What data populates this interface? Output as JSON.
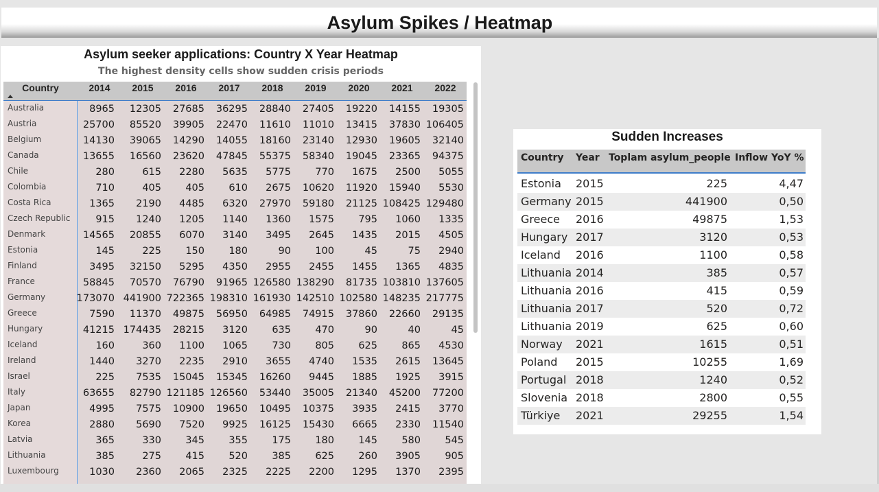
{
  "page_title": "Asylum Spikes / Heatmap",
  "heatmap": {
    "title": "Asylum seeker applications: Country X Year Heatmap",
    "subtitle": "The highest density cells show sudden crisis periods",
    "country_header": "Country",
    "years": [
      "2014",
      "2015",
      "2016",
      "2017",
      "2018",
      "2019",
      "2020",
      "2021",
      "2022"
    ],
    "rows": [
      {
        "country": "Australia",
        "values": [
          "8965",
          "12305",
          "27685",
          "36295",
          "28840",
          "27405",
          "19220",
          "14155",
          "19305"
        ]
      },
      {
        "country": "Austria",
        "values": [
          "25700",
          "85520",
          "39905",
          "22470",
          "11610",
          "11010",
          "13415",
          "37830",
          "106405"
        ]
      },
      {
        "country": "Belgium",
        "values": [
          "14130",
          "39065",
          "14290",
          "14055",
          "18160",
          "23140",
          "12930",
          "19605",
          "32140"
        ]
      },
      {
        "country": "Canada",
        "values": [
          "13655",
          "16560",
          "23620",
          "47845",
          "55375",
          "58340",
          "19045",
          "23365",
          "94375"
        ]
      },
      {
        "country": "Chile",
        "values": [
          "280",
          "615",
          "2280",
          "5635",
          "5775",
          "770",
          "1675",
          "2500",
          "5055"
        ]
      },
      {
        "country": "Colombia",
        "values": [
          "710",
          "405",
          "405",
          "610",
          "2675",
          "10620",
          "11920",
          "15940",
          "5530"
        ]
      },
      {
        "country": "Costa Rica",
        "values": [
          "1365",
          "2190",
          "4485",
          "6320",
          "27970",
          "59180",
          "21125",
          "108425",
          "129480"
        ]
      },
      {
        "country": "Czech Republic",
        "values": [
          "915",
          "1240",
          "1205",
          "1140",
          "1360",
          "1575",
          "795",
          "1060",
          "1335"
        ]
      },
      {
        "country": "Denmark",
        "values": [
          "14565",
          "20855",
          "6070",
          "3140",
          "3495",
          "2645",
          "1435",
          "2015",
          "4505"
        ]
      },
      {
        "country": "Estonia",
        "values": [
          "145",
          "225",
          "150",
          "180",
          "90",
          "100",
          "45",
          "75",
          "2940"
        ]
      },
      {
        "country": "Finland",
        "values": [
          "3495",
          "32150",
          "5295",
          "4350",
          "2955",
          "2455",
          "1455",
          "1365",
          "4835"
        ]
      },
      {
        "country": "France",
        "values": [
          "58845",
          "70570",
          "76790",
          "91965",
          "126580",
          "138290",
          "81735",
          "103810",
          "137605"
        ]
      },
      {
        "country": "Germany",
        "values": [
          "173070",
          "441900",
          "722365",
          "198310",
          "161930",
          "142510",
          "102580",
          "148235",
          "217775"
        ]
      },
      {
        "country": "Greece",
        "values": [
          "7590",
          "11370",
          "49875",
          "56950",
          "64985",
          "74915",
          "37860",
          "22660",
          "29135"
        ]
      },
      {
        "country": "Hungary",
        "values": [
          "41215",
          "174435",
          "28215",
          "3120",
          "635",
          "470",
          "90",
          "40",
          "45"
        ]
      },
      {
        "country": "Iceland",
        "values": [
          "160",
          "360",
          "1100",
          "1065",
          "730",
          "805",
          "625",
          "865",
          "4530"
        ]
      },
      {
        "country": "Ireland",
        "values": [
          "1440",
          "3270",
          "2235",
          "2910",
          "3655",
          "4740",
          "1535",
          "2615",
          "13645"
        ]
      },
      {
        "country": "Israel",
        "values": [
          "225",
          "7535",
          "15045",
          "15345",
          "16260",
          "9445",
          "1885",
          "1925",
          "3915"
        ]
      },
      {
        "country": "Italy",
        "values": [
          "63655",
          "82790",
          "121185",
          "126560",
          "53440",
          "35005",
          "21340",
          "45200",
          "77200"
        ]
      },
      {
        "country": "Japan",
        "values": [
          "4995",
          "7575",
          "10900",
          "19650",
          "10495",
          "10375",
          "3935",
          "2415",
          "3770"
        ]
      },
      {
        "country": "Korea",
        "values": [
          "2880",
          "5690",
          "7520",
          "9925",
          "16125",
          "15430",
          "6665",
          "2330",
          "11540"
        ]
      },
      {
        "country": "Latvia",
        "values": [
          "365",
          "330",
          "345",
          "355",
          "175",
          "180",
          "145",
          "580",
          "545"
        ]
      },
      {
        "country": "Lithuania",
        "values": [
          "385",
          "275",
          "415",
          "520",
          "385",
          "625",
          "260",
          "3905",
          "905"
        ]
      },
      {
        "country": "Luxembourg",
        "values": [
          "1030",
          "2360",
          "2065",
          "2325",
          "2225",
          "2200",
          "1295",
          "1370",
          "2395"
        ]
      }
    ]
  },
  "increases": {
    "title": "Sudden Increases",
    "headers": {
      "country": "Country",
      "year": "Year",
      "people": "Toplam asylum_people",
      "yoy": "Inflow YoY %"
    },
    "rows": [
      {
        "country": "Estonia",
        "year": "2015",
        "people": "225",
        "yoy": "4,47"
      },
      {
        "country": "Germany",
        "year": "2015",
        "people": "441900",
        "yoy": "0,50"
      },
      {
        "country": "Greece",
        "year": "2016",
        "people": "49875",
        "yoy": "1,53"
      },
      {
        "country": "Hungary",
        "year": "2017",
        "people": "3120",
        "yoy": "0,53"
      },
      {
        "country": "Iceland",
        "year": "2016",
        "people": "1100",
        "yoy": "0,58"
      },
      {
        "country": "Lithuania",
        "year": "2014",
        "people": "385",
        "yoy": "0,57"
      },
      {
        "country": "Lithuania",
        "year": "2016",
        "people": "415",
        "yoy": "0,59"
      },
      {
        "country": "Lithuania",
        "year": "2017",
        "people": "520",
        "yoy": "0,72"
      },
      {
        "country": "Lithuania",
        "year": "2019",
        "people": "625",
        "yoy": "0,60"
      },
      {
        "country": "Norway",
        "year": "2021",
        "people": "1615",
        "yoy": "0,51"
      },
      {
        "country": "Poland",
        "year": "2015",
        "people": "10255",
        "yoy": "1,69"
      },
      {
        "country": "Portugal",
        "year": "2018",
        "people": "1240",
        "yoy": "0,52"
      },
      {
        "country": "Slovenia",
        "year": "2018",
        "people": "2800",
        "yoy": "0,55"
      },
      {
        "country": "Türkiye",
        "year": "2021",
        "people": "29255",
        "yoy": "1,54"
      }
    ]
  }
}
